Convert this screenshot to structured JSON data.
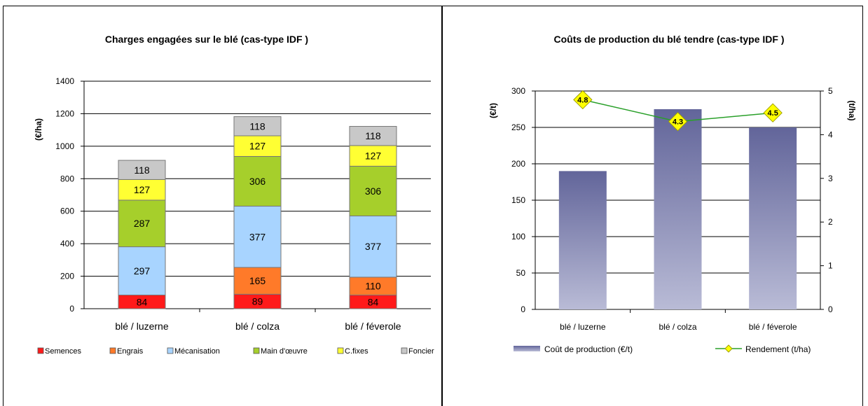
{
  "chart_data": [
    {
      "type": "bar",
      "stacked": true,
      "title": "Charges engagées sur le blé (cas-type IDF )",
      "ylabel": "(€/ha)",
      "xlabel": "",
      "ylim": [
        0,
        1400
      ],
      "yticks": [
        0,
        200,
        400,
        600,
        800,
        1000,
        1200,
        1400
      ],
      "grid": true,
      "legend_position": "bottom",
      "categories": [
        "blé / luzerne",
        "blé / colza",
        "blé / féverole"
      ],
      "series": [
        {
          "name": "Semences",
          "color": "#ff1a1a",
          "values": [
            84,
            89,
            84
          ]
        },
        {
          "name": "Engrais",
          "color": "#ff7a29",
          "values": [
            0,
            165,
            110
          ]
        },
        {
          "name": "Mécanisation",
          "color": "#a8d4ff",
          "values": [
            297,
            377,
            377
          ]
        },
        {
          "name": "Main d'œuvre",
          "color": "#a6cf2b",
          "values": [
            287,
            306,
            306
          ]
        },
        {
          "name": "C.fixes",
          "color": "#ffff33",
          "values": [
            127,
            127,
            127
          ]
        },
        {
          "name": "Foncier",
          "color": "#c8c8c8",
          "values": [
            118,
            118,
            118
          ]
        }
      ]
    },
    {
      "type": "bar+line",
      "title": "Coûts de production du blé tendre (cas-type IDF )",
      "ylabel": "(€/t)",
      "y2label": "(t/ha)",
      "ylim": [
        0,
        300
      ],
      "yticks": [
        0,
        50,
        100,
        150,
        200,
        250,
        300
      ],
      "y2lim": [
        0,
        5
      ],
      "y2ticks": [
        0,
        1,
        2,
        3,
        4,
        5
      ],
      "grid": true,
      "legend_position": "bottom",
      "categories": [
        "blé / luzerne",
        "blé / colza",
        "blé / féverole"
      ],
      "series": [
        {
          "name": "Coût de production (€/t)",
          "type": "bar",
          "axis": "left",
          "color": "#6b6fa0",
          "values": [
            190,
            275,
            250
          ]
        },
        {
          "name": "Rendement (t/ha)",
          "type": "line",
          "axis": "right",
          "color": "#2aa02a",
          "marker_color": "#ffff00",
          "values": [
            4.8,
            4.3,
            4.5
          ],
          "labels": [
            "4.8",
            "4.3",
            "4.5"
          ]
        }
      ]
    }
  ]
}
